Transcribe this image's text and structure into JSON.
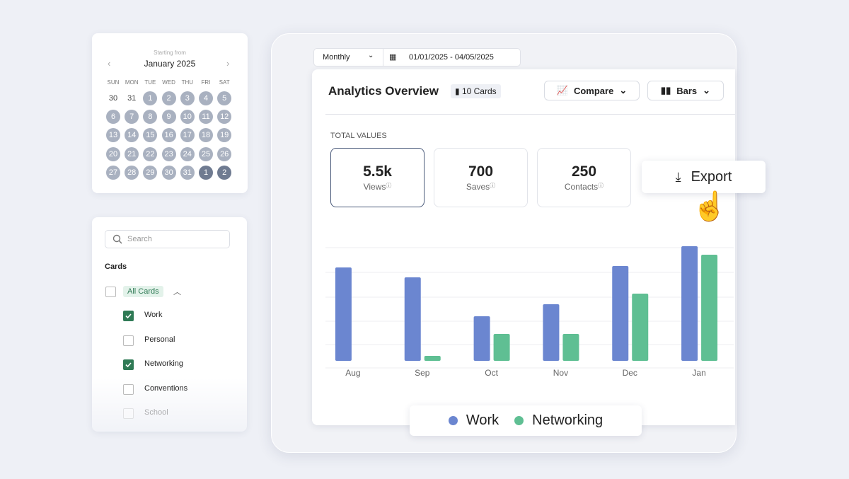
{
  "date_bar": {
    "period": "Monthly",
    "range": "01/01/2025 - 04/05/2025"
  },
  "calendar": {
    "caption": "Starting from",
    "month": "January 2025",
    "weekdays": [
      "SUN",
      "MON",
      "TUE",
      "WED",
      "THU",
      "FRI",
      "SAT"
    ],
    "days": [
      [
        "30",
        "31",
        "1",
        "2",
        "3",
        "4",
        "5"
      ],
      [
        "6",
        "7",
        "8",
        "9",
        "10",
        "11",
        "12"
      ],
      [
        "13",
        "14",
        "15",
        "16",
        "17",
        "18",
        "19"
      ],
      [
        "20",
        "21",
        "22",
        "23",
        "24",
        "25",
        "26"
      ],
      [
        "27",
        "28",
        "29",
        "30",
        "31",
        "1",
        "2"
      ]
    ]
  },
  "filters": {
    "search_placeholder": "Search",
    "section": "Cards",
    "all": "All Cards",
    "items": [
      {
        "label": "Work",
        "checked": true
      },
      {
        "label": "Personal",
        "checked": false
      },
      {
        "label": "Networking",
        "checked": true
      },
      {
        "label": "Conventions",
        "checked": false
      },
      {
        "label": "School",
        "checked": false
      }
    ]
  },
  "header": {
    "title": "Analytics Overview",
    "badge": "10 Cards",
    "compare": "Compare",
    "view": "Bars"
  },
  "totals": {
    "heading": "TOTAL VALUES",
    "stats": [
      {
        "value": "5.5k",
        "label": "Views"
      },
      {
        "value": "700",
        "label": "Saves"
      },
      {
        "value": "250",
        "label": "Contacts"
      }
    ]
  },
  "export": "Export",
  "chart_data": {
    "type": "bar",
    "categories": [
      "Aug",
      "Sep",
      "Oct",
      "Nov",
      "Dec",
      "Jan"
    ],
    "series": [
      {
        "name": "Work",
        "color": "#6b86d0",
        "values": [
          132,
          118,
          63,
          80,
          134,
          162
        ]
      },
      {
        "name": "Networking",
        "color": "#5fbf93",
        "values": [
          null,
          7,
          38,
          38,
          95,
          150
        ]
      }
    ],
    "ylim": [
      0,
      170
    ]
  }
}
